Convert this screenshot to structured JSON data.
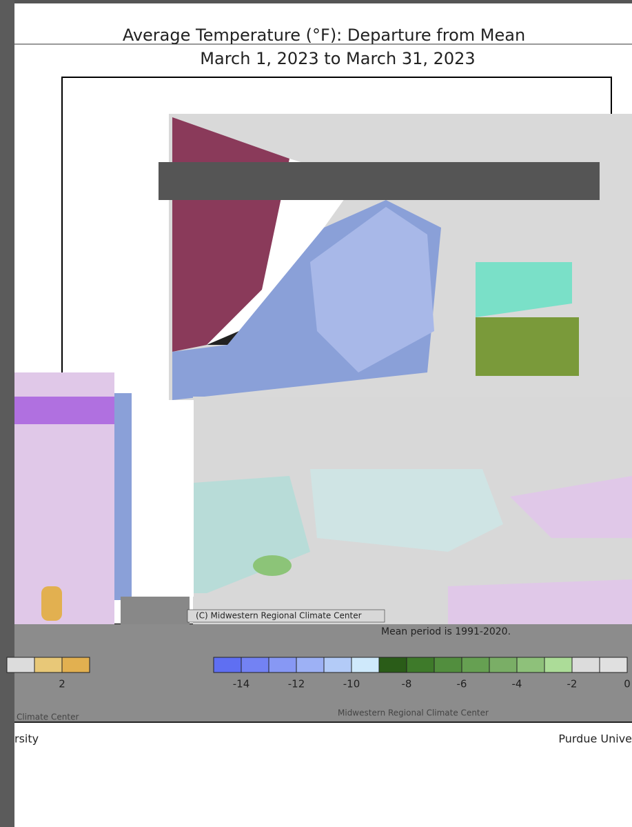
{
  "header": {
    "title": "Average Temperature (°F): Departure from Mean",
    "subtitle": "March 1, 2023 to March 31, 2023"
  },
  "map": {
    "credit": "(C) Midwestern Regional Climate Center",
    "note": "Mean period is 1991-2020."
  },
  "legend": {
    "left_colors": [
      "#dcdcdc",
      "#e8c878",
      "#e2b050"
    ],
    "left_labels": [
      "2"
    ],
    "colors": [
      "#5f6ff2",
      "#7382f3",
      "#8798f4",
      "#9db1f5",
      "#b3cbf7",
      "#cfe9fb",
      "#2a5c18",
      "#3e7a2a",
      "#528e3e",
      "#66a052",
      "#7aae66",
      "#8ec17a",
      "#acdc98",
      "#dcdcdc",
      "#e0e0e0"
    ],
    "labels": [
      "-14",
      "-12",
      "-10",
      "-8",
      "-6",
      "-4",
      "-2",
      "0"
    ]
  },
  "footer": {
    "left_credit": "Climate Center",
    "center_credit": "Midwestern Regional Climate Center",
    "left": "rsity",
    "right": "Purdue Unive"
  }
}
